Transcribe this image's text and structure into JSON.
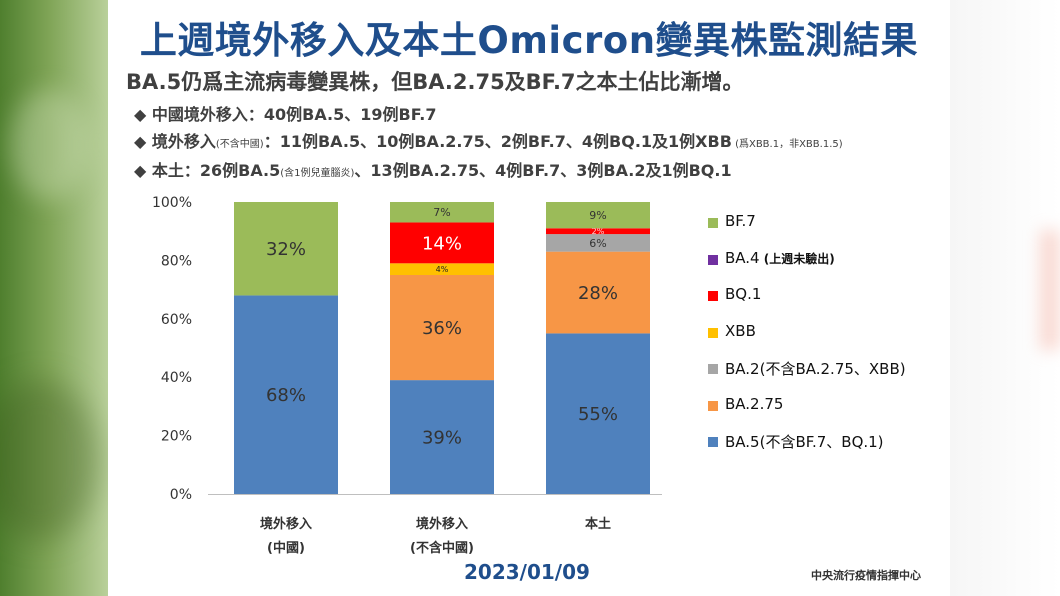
{
  "title": "上週境外移入及本土Omicron變異株監測結果",
  "subtitle": "BA.5仍爲主流病毒變異株，但BA.2.75及BF.7之本土佔比漸增。",
  "bullets": [
    {
      "marker": "◆",
      "text": "中國境外移入：40例BA.5、19例BF.7",
      "small": "",
      "rest": "",
      "small2": "",
      "rest2": ""
    },
    {
      "marker": "◆",
      "text": "境外移入",
      "small": "(不含中國)",
      "rest": "：11例BA.5、10例BA.2.75、2例BF.7、4例BQ.1及1例XBB",
      "small2": " (爲XBB.1，非XBB.1.5)",
      "rest2": ""
    },
    {
      "marker": "◆",
      "text": "本土：26例BA.5",
      "small": "(含1例兒童腦炎)",
      "rest": "、13例BA.2.75、4例BF.7、3例BA.2及1例BQ.1",
      "small2": "",
      "rest2": ""
    }
  ],
  "date": "2023/01/09",
  "organization": "中央流行疫情指揮中心",
  "colors": {
    "BA5": "#4f81bd",
    "BA275": "#f79646",
    "BA2": "#a6a6a6",
    "XBB": "#ffc000",
    "BQ1": "#ff0000",
    "BA4": "#7030a0",
    "BF7": "#9bbb59",
    "title": "#1f4e8c"
  },
  "chart_data": {
    "type": "bar",
    "stacked": true,
    "title": "",
    "xlabel": "",
    "ylabel": "",
    "ylim": [
      0,
      100
    ],
    "yticks": [
      "0%",
      "20%",
      "40%",
      "60%",
      "80%",
      "100%"
    ],
    "categories": [
      {
        "line1": "境外移入",
        "line2": "(中國)"
      },
      {
        "line1": "境外移入",
        "line2": "(不含中國)"
      },
      {
        "line1": "本土",
        "line2": ""
      }
    ],
    "series": [
      {
        "key": "BA5",
        "name": "BA.5(不含BF.7、BQ.1)",
        "color": "#4f81bd",
        "values": [
          68,
          39,
          55
        ],
        "labels": [
          "68%",
          "39%",
          "55%"
        ]
      },
      {
        "key": "BA275",
        "name": "BA.2.75",
        "color": "#f79646",
        "values": [
          0,
          36,
          28
        ],
        "labels": [
          "",
          "36%",
          "28%"
        ]
      },
      {
        "key": "BA2",
        "name": "BA.2(不含BA.2.75、XBB)",
        "color": "#a6a6a6",
        "values": [
          0,
          0,
          6
        ],
        "labels": [
          "",
          "",
          "6%"
        ]
      },
      {
        "key": "XBB",
        "name": "XBB",
        "color": "#ffc000",
        "values": [
          0,
          4,
          0
        ],
        "labels": [
          "",
          "4%",
          ""
        ]
      },
      {
        "key": "BQ1",
        "name": "BQ.1",
        "color": "#ff0000",
        "values": [
          0,
          14,
          2
        ],
        "labels": [
          "",
          "14%",
          "2%"
        ]
      },
      {
        "key": "BA4",
        "name": "BA.4",
        "note": "(上週未驗出)",
        "color": "#7030a0",
        "values": [
          0,
          0,
          0
        ],
        "labels": [
          "",
          "",
          ""
        ]
      },
      {
        "key": "BF7",
        "name": "BF.7",
        "color": "#9bbb59",
        "values": [
          32,
          7,
          9
        ],
        "labels": [
          "32%",
          "7%",
          "9%"
        ]
      }
    ],
    "legend_order": [
      "BF7",
      "BA4",
      "BQ1",
      "XBB",
      "BA2",
      "BA275",
      "BA5"
    ],
    "legend_position": "right"
  }
}
